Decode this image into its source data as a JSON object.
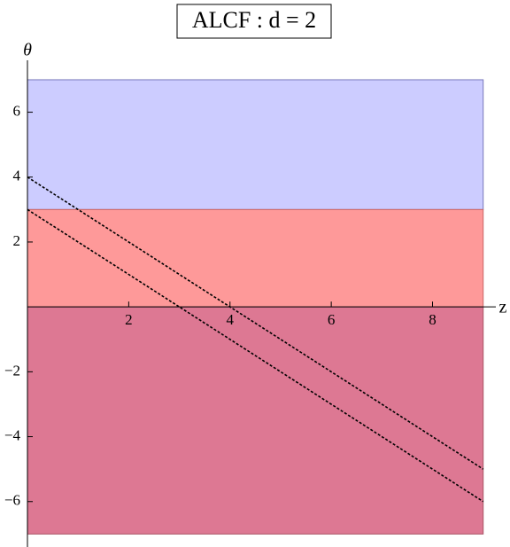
{
  "chart_data": {
    "type": "line",
    "title": "ALCF : d = 2",
    "x_label": "z",
    "y_label": "θ",
    "xlim": [
      0,
      9.25
    ],
    "ylim": [
      -7.4,
      7.6
    ],
    "xticks": [
      2,
      4,
      6,
      8
    ],
    "yticks": [
      {
        "value": -6,
        "label": "−6"
      },
      {
        "value": -4,
        "label": "−4"
      },
      {
        "value": -2,
        "label": "−2"
      },
      2,
      4,
      6
    ],
    "bands": [
      {
        "x": [
          0,
          9
        ],
        "y": [
          3,
          7
        ],
        "color": "#ccccff",
        "edge": "#7777bb"
      },
      {
        "x": [
          0,
          9
        ],
        "y": [
          0,
          3
        ],
        "color": "#fe9999",
        "edge": "#cc6666"
      },
      {
        "x": [
          0,
          9
        ],
        "y": [
          -7,
          0
        ],
        "color": "#dd7893",
        "edge": "#aa5566"
      }
    ],
    "series": [
      {
        "x": [
          0,
          9
        ],
        "values": [
          4,
          -5
        ],
        "color": "#000000",
        "dashed": true
      },
      {
        "x": [
          0,
          9
        ],
        "values": [
          3,
          -6
        ],
        "color": "#000000",
        "dashed": true
      }
    ]
  }
}
